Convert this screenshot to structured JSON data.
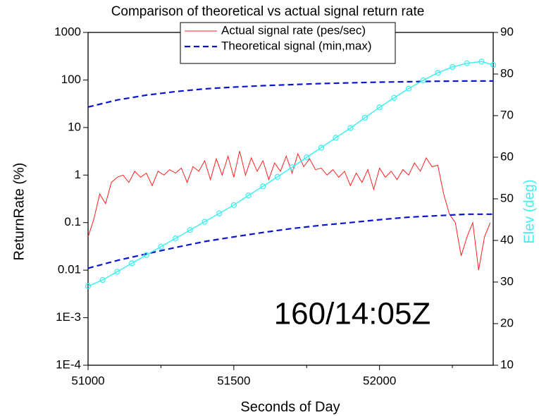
{
  "chart_data": {
    "type": "line",
    "title": "Comparison of theoretical vs actual signal return rate",
    "xlabel": "Seconds of Day",
    "ylabel": "ReturnRate (%)",
    "y2label": "Elev (deg)",
    "annotation": "160/14:05Z",
    "xlim": [
      51000,
      52390
    ],
    "xticks": [
      51000,
      51500,
      52000
    ],
    "xminorticks": [
      51250,
      51750,
      52250
    ],
    "ylim": [
      0.0001,
      1000
    ],
    "yscale": "log",
    "yticks": [
      {
        "value": 0.0001,
        "label": "1E-4"
      },
      {
        "value": 0.001,
        "label": "1E-3"
      },
      0.01,
      0.1,
      1,
      10,
      100,
      1000
    ],
    "y2lim": [
      10,
      90
    ],
    "y2ticks": [
      10,
      20,
      30,
      40,
      50,
      60,
      70,
      80,
      90
    ],
    "legend": "top",
    "series": [
      {
        "name": "Actual signal rate (pes/sec)",
        "color": "#ff2020",
        "style": "solid",
        "x": [
          51000,
          51020,
          51040,
          51060,
          51080,
          51100,
          51120,
          51140,
          51160,
          51180,
          51200,
          51220,
          51240,
          51260,
          51280,
          51300,
          51320,
          51340,
          51360,
          51380,
          51400,
          51420,
          51440,
          51460,
          51480,
          51500,
          51520,
          51540,
          51560,
          51580,
          51600,
          51620,
          51640,
          51660,
          51680,
          51700,
          51720,
          51740,
          51760,
          51780,
          51800,
          51820,
          51840,
          51860,
          51880,
          51900,
          51920,
          51940,
          51960,
          51980,
          52000,
          52020,
          52040,
          52060,
          52080,
          52100,
          52120,
          52140,
          52160,
          52180,
          52200,
          52220,
          52240,
          52260,
          52280,
          52300,
          52320,
          52340,
          52360,
          52380
        ],
        "values": [
          0.05,
          0.12,
          0.4,
          0.25,
          0.7,
          0.9,
          1.0,
          0.7,
          1.2,
          0.9,
          1.1,
          0.6,
          1.2,
          1.0,
          1.3,
          1.1,
          1.4,
          0.7,
          1.5,
          1.2,
          2.0,
          0.8,
          2.2,
          1.0,
          2.5,
          0.9,
          3.2,
          1.0,
          2.3,
          1.2,
          2.0,
          0.8,
          1.8,
          1.2,
          2.5,
          1.1,
          2.8,
          1.5,
          2.2,
          1.3,
          1.4,
          1.0,
          1.3,
          0.9,
          1.2,
          0.6,
          1.1,
          0.7,
          1.3,
          0.5,
          1.4,
          0.9,
          1.2,
          0.8,
          1.3,
          1.0,
          1.8,
          1.2,
          2.3,
          1.5,
          1.6,
          0.4,
          0.15,
          0.1,
          0.02,
          0.05,
          0.1,
          0.01,
          0.05,
          0.1
        ]
      },
      {
        "name": "Theoretical signal (min,max)",
        "color": "#0a14d2",
        "style": "dashed",
        "x": [
          51000,
          51100,
          51200,
          51300,
          51400,
          51500,
          51600,
          51700,
          51800,
          51900,
          52000,
          52100,
          52200,
          52300,
          52390
        ],
        "upper": [
          27,
          38,
          48,
          57,
          65,
          71,
          76,
          80,
          84,
          87,
          90,
          92,
          94,
          95,
          95
        ],
        "lower": [
          0.011,
          0.016,
          0.022,
          0.03,
          0.04,
          0.05,
          0.062,
          0.075,
          0.088,
          0.1,
          0.115,
          0.13,
          0.14,
          0.15,
          0.15
        ]
      },
      {
        "color": "#40f0f0",
        "style": "circles",
        "axis": "y2",
        "x": [
          51000,
          51050,
          51100,
          51150,
          51200,
          51250,
          51300,
          51350,
          51400,
          51450,
          51500,
          51550,
          51600,
          51650,
          51700,
          51750,
          51800,
          51850,
          51900,
          51950,
          52000,
          52050,
          52100,
          52150,
          52200,
          52250,
          52300,
          52350,
          52390
        ],
        "values": [
          29,
          30.5,
          32.5,
          34.5,
          36.5,
          38.5,
          40.5,
          42.5,
          44.5,
          46.5,
          48.5,
          50.8,
          53,
          55.3,
          57.6,
          60,
          62.3,
          64.7,
          67,
          69.5,
          72,
          74.3,
          76.5,
          78.5,
          80.3,
          81.7,
          82.6,
          83,
          82.2
        ]
      }
    ]
  }
}
